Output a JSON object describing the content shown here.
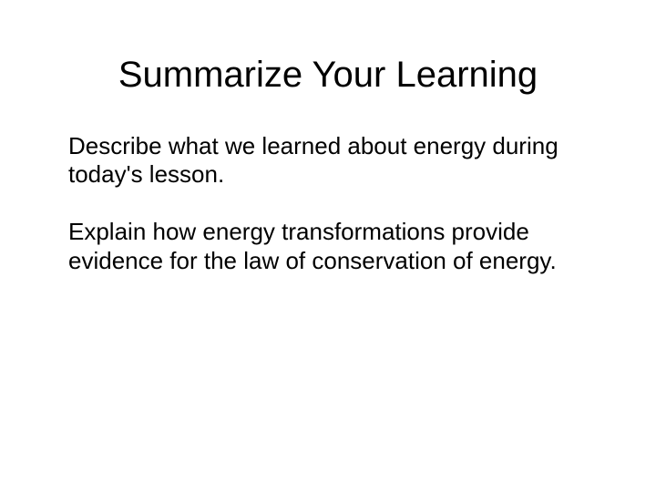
{
  "slide": {
    "title": "Summarize Your Learning",
    "paragraph1": "Describe what we learned about energy during today's lesson.",
    "paragraph2": "Explain how  energy transformations provide evidence for the law of conservation of energy."
  },
  "styling": {
    "background_color": "#ffffff",
    "text_color": "#000000",
    "title_fontsize": 40,
    "body_fontsize": 26,
    "font_family": "Arial"
  }
}
